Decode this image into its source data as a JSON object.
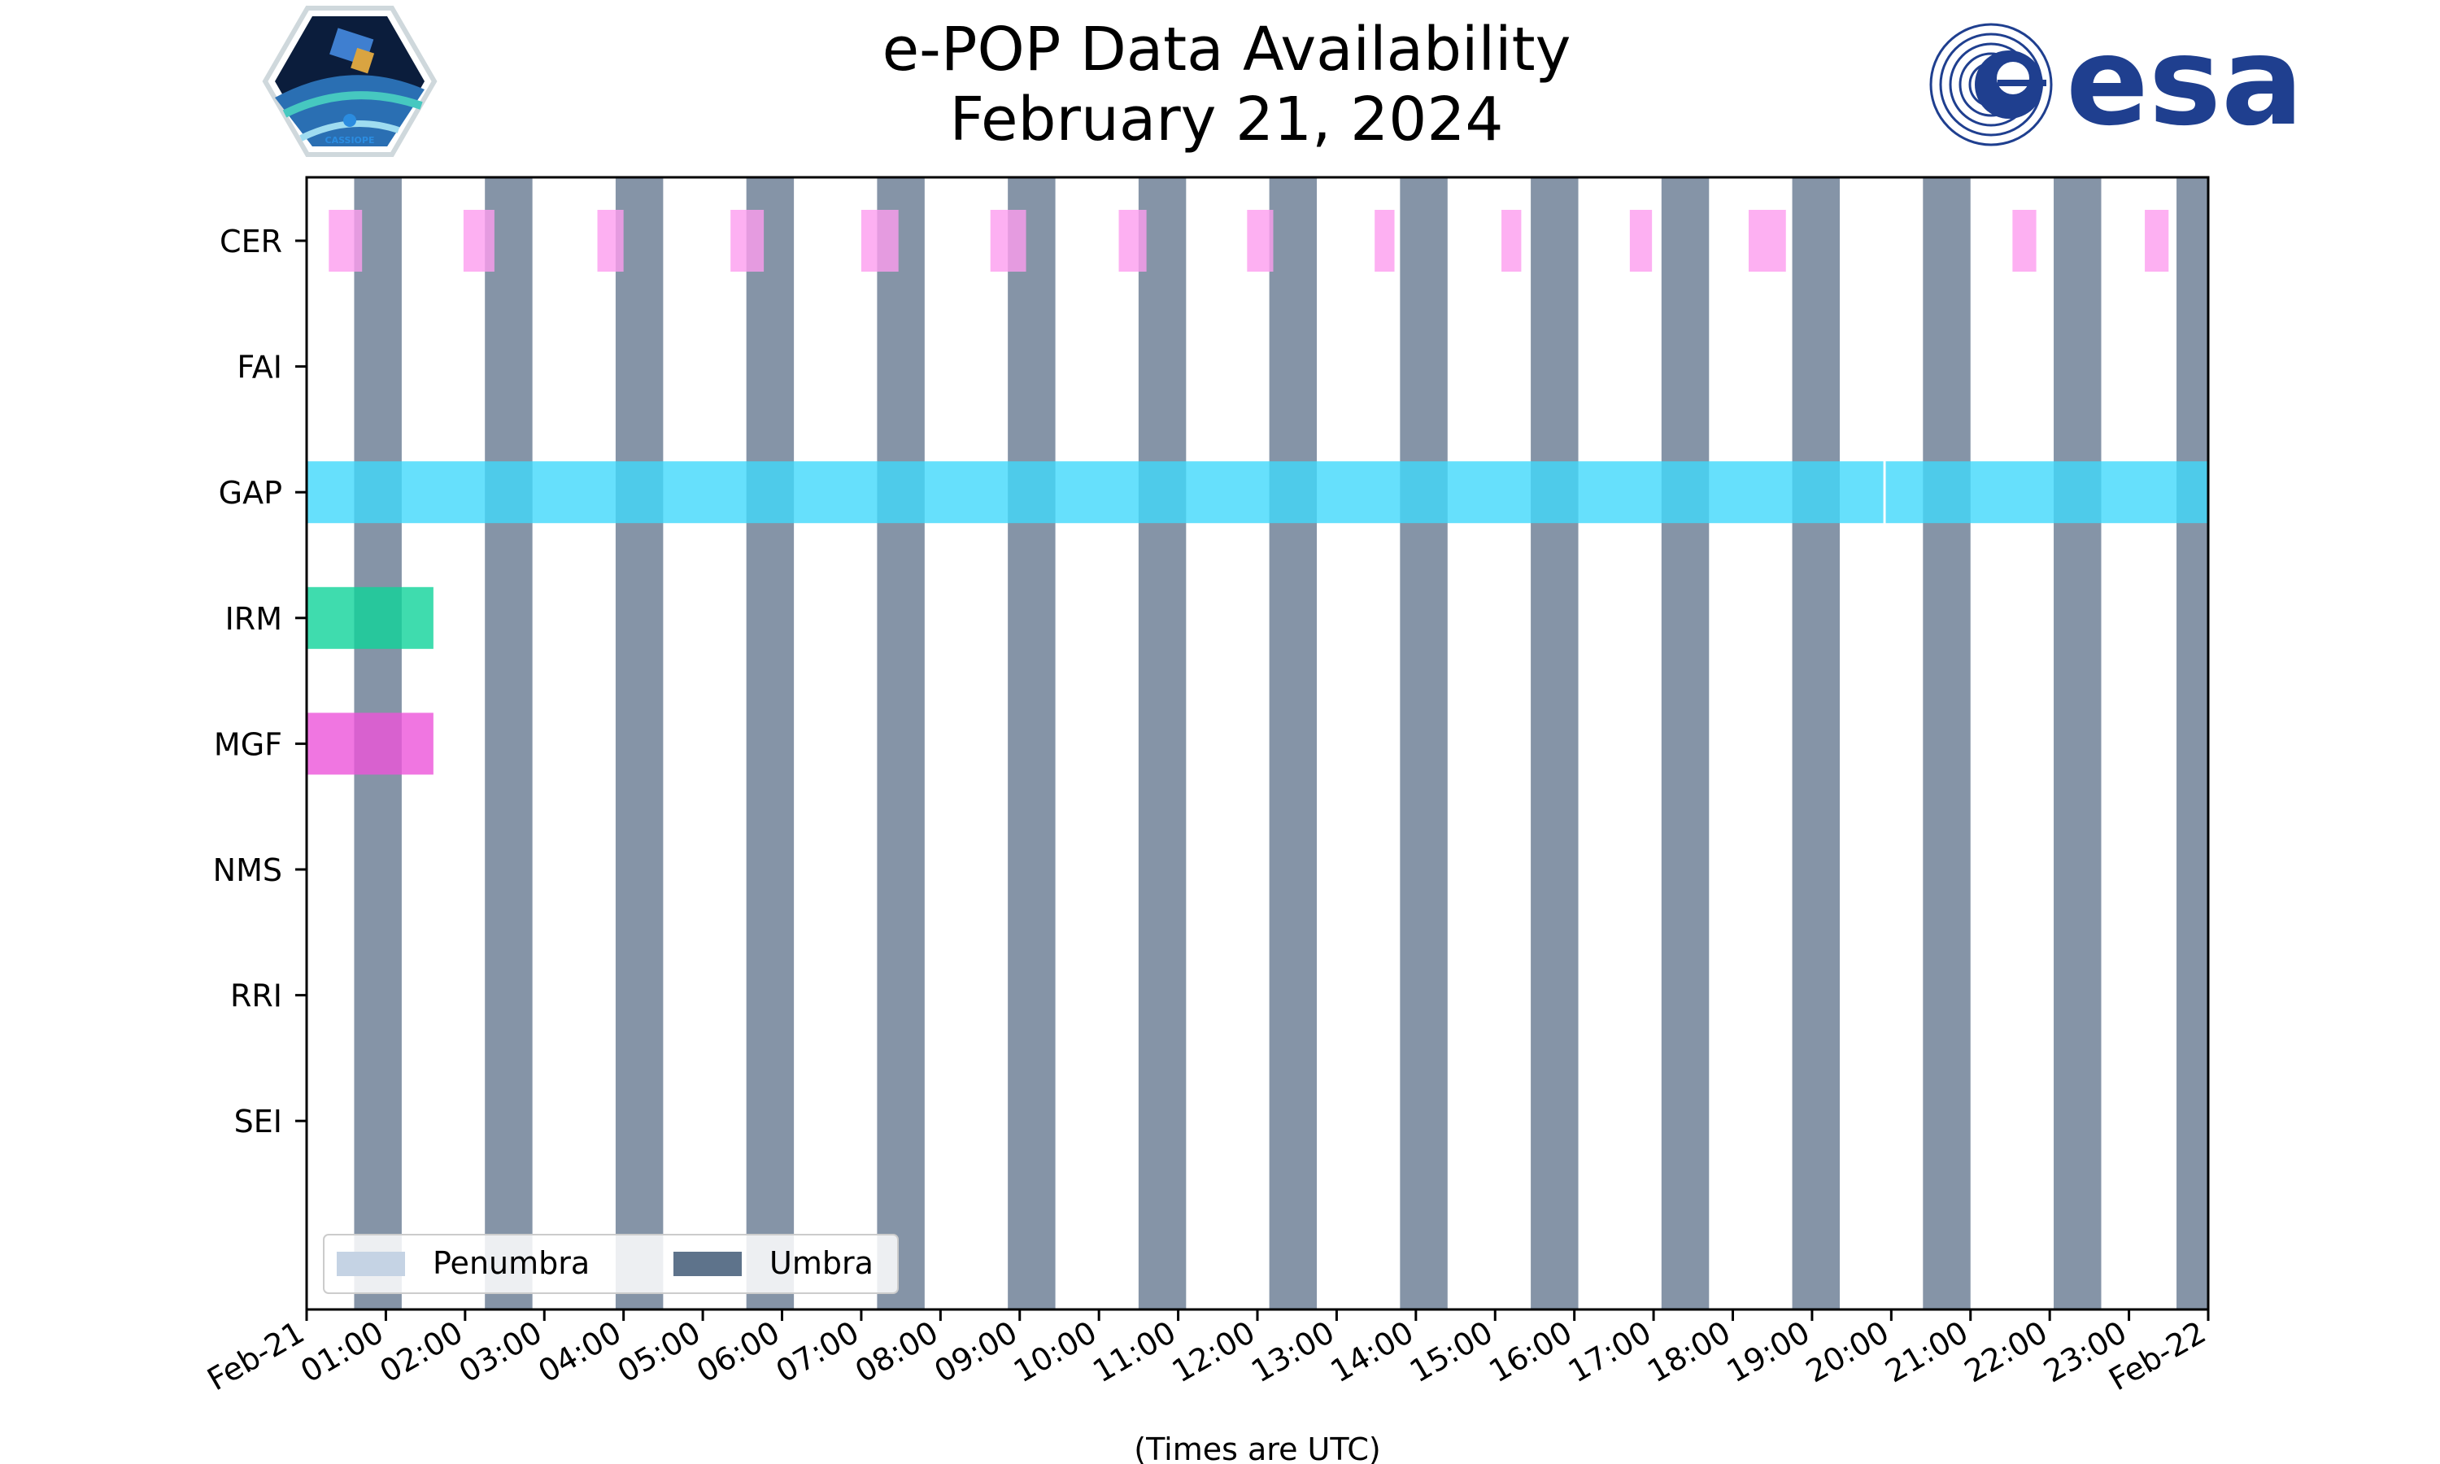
{
  "chart_data": {
    "type": "timeline",
    "title": "e-POP Data Availability",
    "subtitle": "February 21, 2024",
    "xlabel": "(Times are UTC)",
    "x_unit": "hours since 2024-02-21 00:00 UTC",
    "xlim": [
      0,
      24
    ],
    "x_ticks": [
      {
        "value": 0,
        "label": "Feb-21"
      },
      {
        "value": 1,
        "label": "01:00"
      },
      {
        "value": 2,
        "label": "02:00"
      },
      {
        "value": 3,
        "label": "03:00"
      },
      {
        "value": 4,
        "label": "04:00"
      },
      {
        "value": 5,
        "label": "05:00"
      },
      {
        "value": 6,
        "label": "06:00"
      },
      {
        "value": 7,
        "label": "07:00"
      },
      {
        "value": 8,
        "label": "08:00"
      },
      {
        "value": 9,
        "label": "09:00"
      },
      {
        "value": 10,
        "label": "10:00"
      },
      {
        "value": 11,
        "label": "11:00"
      },
      {
        "value": 12,
        "label": "12:00"
      },
      {
        "value": 13,
        "label": "13:00"
      },
      {
        "value": 14,
        "label": "14:00"
      },
      {
        "value": 15,
        "label": "15:00"
      },
      {
        "value": 16,
        "label": "16:00"
      },
      {
        "value": 17,
        "label": "17:00"
      },
      {
        "value": 18,
        "label": "18:00"
      },
      {
        "value": 19,
        "label": "19:00"
      },
      {
        "value": 20,
        "label": "20:00"
      },
      {
        "value": 21,
        "label": "21:00"
      },
      {
        "value": 22,
        "label": "22:00"
      },
      {
        "value": 23,
        "label": "23:00"
      },
      {
        "value": 24,
        "label": "Feb-22"
      }
    ],
    "instruments": [
      "CER",
      "FAI",
      "GAP",
      "IRM",
      "MGF",
      "NMS",
      "RRI",
      "SEI"
    ],
    "series": [
      {
        "name": "CER",
        "color": "#fc9cef",
        "intervals": [
          [
            0.28,
            0.7
          ],
          [
            1.98,
            2.37
          ],
          [
            3.67,
            4.0
          ],
          [
            5.35,
            5.77
          ],
          [
            7.0,
            7.47
          ],
          [
            8.63,
            9.08
          ],
          [
            10.25,
            10.6
          ],
          [
            11.87,
            12.2
          ],
          [
            13.48,
            13.73
          ],
          [
            15.08,
            15.33
          ],
          [
            16.7,
            16.98
          ],
          [
            18.2,
            18.67
          ],
          [
            21.53,
            21.83
          ],
          [
            23.2,
            23.5
          ]
        ]
      },
      {
        "name": "FAI",
        "color": "#7ad3f5",
        "intervals": []
      },
      {
        "name": "GAP",
        "color": "#40d8fb",
        "intervals": [
          [
            0.0,
            19.9
          ],
          [
            19.93,
            24.0
          ]
        ]
      },
      {
        "name": "IRM",
        "color": "#0fd39a",
        "intervals": [
          [
            0.0,
            1.6
          ]
        ]
      },
      {
        "name": "MGF",
        "color": "#ec54da",
        "intervals": [
          [
            0.0,
            1.6
          ]
        ]
      },
      {
        "name": "NMS",
        "color": "#aaaaaa",
        "intervals": []
      },
      {
        "name": "RRI",
        "color": "#aaaaaa",
        "intervals": []
      },
      {
        "name": "SEI",
        "color": "#aaaaaa",
        "intervals": []
      }
    ],
    "umbra": {
      "color": "#5e738b",
      "intervals": [
        [
          0.6,
          1.2
        ],
        [
          2.25,
          2.85
        ],
        [
          3.9,
          4.5
        ],
        [
          5.55,
          6.15
        ],
        [
          7.2,
          7.8
        ],
        [
          8.85,
          9.45
        ],
        [
          10.5,
          11.1
        ],
        [
          12.15,
          12.75
        ],
        [
          13.8,
          14.4
        ],
        [
          15.45,
          16.05
        ],
        [
          17.1,
          17.7
        ],
        [
          18.75,
          19.35
        ],
        [
          20.4,
          21.0
        ],
        [
          22.05,
          22.65
        ],
        [
          23.6,
          24.0
        ]
      ]
    },
    "penumbra": {
      "color": "#c5d3e4",
      "intervals": []
    },
    "legend": {
      "position": "lower-left",
      "entries": [
        {
          "label": "Penumbra",
          "color": "#c5d3e4"
        },
        {
          "label": "Umbra",
          "color": "#5e738b"
        }
      ]
    }
  }
}
